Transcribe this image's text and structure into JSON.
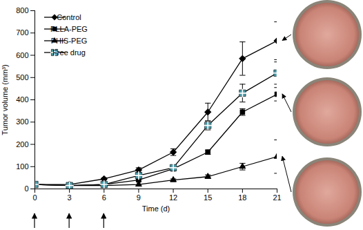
{
  "chart_data": {
    "type": "line",
    "x_label": "Time (d)",
    "y_label": "Tumor volume (mm³)",
    "x": [
      0,
      3,
      6,
      9,
      12,
      15,
      18,
      21
    ],
    "xlim": [
      0,
      21
    ],
    "xticks": [
      0,
      3,
      6,
      9,
      12,
      15,
      18,
      21
    ],
    "ylim": [
      0,
      800
    ],
    "yticks": [
      0,
      100,
      200,
      300,
      400,
      500,
      600,
      700,
      800
    ],
    "grid": false,
    "legend": "top-left",
    "dose_days": [
      0,
      3,
      6
    ],
    "series": [
      {
        "name": "Control",
        "color": "#000000",
        "marker": "diamond",
        "values": [
          20,
          20,
          45,
          85,
          165,
          345,
          585,
          665
        ],
        "errors": [
          0,
          0,
          5,
          10,
          15,
          40,
          75,
          85
        ]
      },
      {
        "name": "PLLA-PEG",
        "color": "#000000",
        "marker": "square",
        "values": [
          20,
          15,
          20,
          40,
          90,
          165,
          345,
          425
        ],
        "errors": [
          0,
          0,
          0,
          5,
          8,
          10,
          15,
          30
        ]
      },
      {
        "name": "PHIS-PEG",
        "color": "#000000",
        "marker": "triangle",
        "values": [
          20,
          15,
          15,
          20,
          40,
          55,
          100,
          145
        ],
        "errors": [
          0,
          0,
          0,
          0,
          5,
          8,
          15,
          75
        ]
      },
      {
        "name": "Free drug",
        "color": "#4a9aa8",
        "marker": "square_plus",
        "values": [
          20,
          15,
          20,
          60,
          95,
          285,
          430,
          520
        ],
        "errors": [
          0,
          0,
          0,
          8,
          10,
          20,
          40,
          50
        ]
      }
    ]
  }
}
